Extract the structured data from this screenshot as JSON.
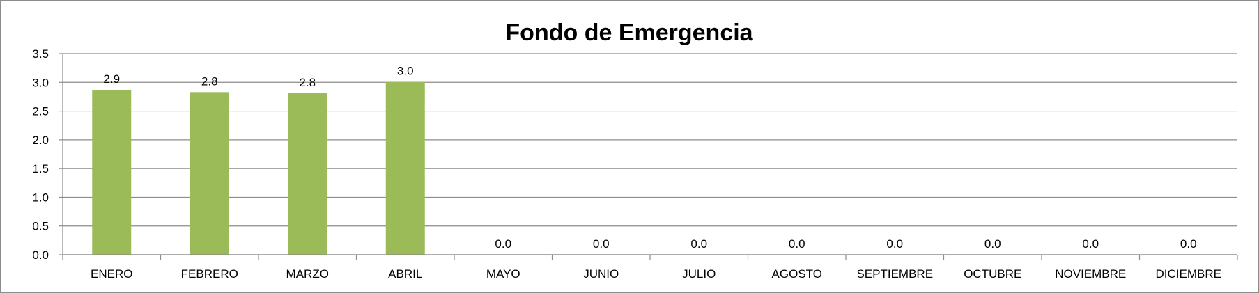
{
  "chart_data": {
    "type": "bar",
    "title": "Fondo de Emergencia",
    "xlabel": "",
    "ylabel": "",
    "ylim": [
      0,
      3.5
    ],
    "yticks": [
      "0.0",
      "0.5",
      "1.0",
      "1.5",
      "2.0",
      "2.5",
      "3.0",
      "3.5"
    ],
    "grid": true,
    "legend": "none",
    "bar_color": "#9bbb59",
    "categories": [
      "ENERO",
      "FEBRERO",
      "MARZO",
      "ABRIL",
      "MAYO",
      "JUNIO",
      "JULIO",
      "AGOSTO",
      "SEPTIEMBRE",
      "OCTUBRE",
      "NOVIEMBRE",
      "DICIEMBRE"
    ],
    "values": [
      2.87,
      2.83,
      2.81,
      3.01,
      0,
      0,
      0,
      0,
      0,
      0,
      0,
      0
    ],
    "data_labels": [
      "2.9",
      "2.8",
      "2.8",
      "3.0",
      "0.0",
      "0.0",
      "0.0",
      "0.0",
      "0.0",
      "0.0",
      "0.0",
      "0.0"
    ]
  }
}
